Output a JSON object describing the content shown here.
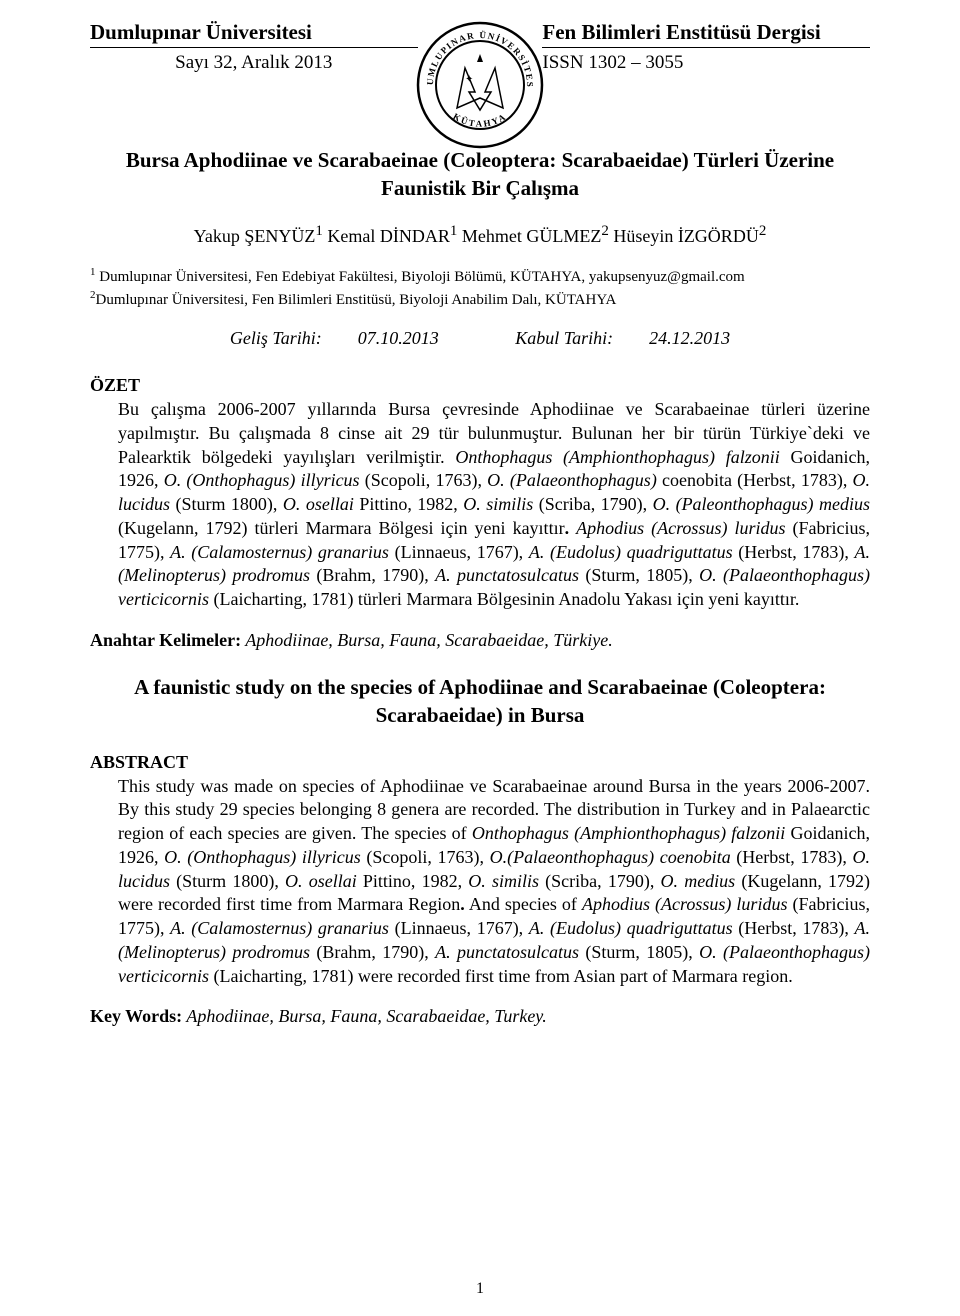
{
  "header": {
    "left_line1": "Dumlupınar Üniversitesi",
    "left_line2": "Sayı 32, Aralık 2013",
    "right_line1": "Fen Bilimleri Enstitüsü Dergisi",
    "right_line2": "ISSN 1302 – 3055",
    "logo": {
      "top_text": "DUMLUPINAR ÜNİVERSİTESİ",
      "bottom_text": "KÜTAHYA",
      "colors": {
        "stroke": "#000000",
        "fill": "#ffffff"
      }
    }
  },
  "title": "Bursa Aphodiinae ve Scarabaeinae (Coleoptera: Scarabaeidae) Türleri Üzerine Faunistik Bir Çalışma",
  "authors_html": "Yakup ŞENYÜZ<sup>1</sup> Kemal DİNDAR<sup>1</sup> Mehmet GÜLMEZ<sup>2</sup> Hüseyin İZGÖRDÜ<sup>2</sup>",
  "affiliations": [
    "<sup>1</sup> Dumlupınar Üniversitesi, Fen Edebiyat Fakültesi, Biyoloji Bölümü, KÜTAHYA, yakupsenyuz@gmail.com",
    "<sup>2</sup>Dumlupınar Üniversitesi, Fen Bilimleri Enstitüsü, Biyoloji Anabilim Dalı, KÜTAHYA"
  ],
  "dates": {
    "received_label": "Geliş Tarihi:",
    "received": "07.10.2013",
    "accepted_label": "Kabul Tarihi:",
    "accepted": "24.12.2013"
  },
  "ozet": {
    "head": "ÖZET",
    "body_html": "Bu çalışma 2006-2007 yıllarında Bursa çevresinde Aphodiinae ve Scarabaeinae türleri üzerine yapılmıştır. Bu çalışmada 8 cinse ait 29 tür bulunmuştur. Bulunan her bir türün Türkiye`deki ve Palearktik bölgedeki yayılışları verilmiştir. <span class='ital'>Onthophagus (Amphionthophagus) falzonii</span> Goidanich, 1926, <span class='ital'>O. (Onthophagus) illyricus</span> (Scopoli, 1763), <span class='ital'>O. (Palaeonthophagus)</span> coenobita (Herbst, 1783), <span class='ital'>O. lucidus</span> (Sturm 1800), <span class='ital'>O. osellai</span> Pittino, 1982, <span class='ital'>O. similis</span> (Scriba, 1790), <span class='ital'>O. (Paleonthophagus) medius</span> (Kugelann, 1792) türleri Marmara Bölgesi için yeni kayıttır<b>.</b> <span class='ital'>Aphodius (Acrossus) luridus</span> (Fabricius, 1775), <span class='ital'>A. (Calamosternus) granarius</span> (Linnaeus, 1767), <span class='ital'>A. (Eudolus) quadriguttatus</span> (Herbst, 1783), <span class='ital'>A. (Melinopterus) prodromus</span> (Brahm, 1790), <span class='ital'>A. punctatosulcatus</span> (Sturm, 1805), <span class='ital'>O. (Palaeonthophagus) verticicornis</span> (Laicharting, 1781) türleri Marmara Bölgesinin Anadolu Yakası için yeni kayıttır."
  },
  "anahtar": {
    "label": "Anahtar Kelimeler:",
    "text": " Aphodiinae, Bursa, Fauna, Scarabaeidae, Türkiye."
  },
  "en_title": "A faunistic study on the species of Aphodiinae and Scarabaeinae (Coleoptera: Scarabaeidae) in Bursa",
  "abstract": {
    "head": "ABSTRACT",
    "body_html": "This study was made on species of Aphodiinae ve Scarabaeinae around Bursa in the years 2006-2007. By this study 29 species belonging 8 genera are recorded. The distribution in Turkey and in Palaearctic region of each species are given. The species of <span class='ital'>Onthophagus (Amphionthophagus) falzonii</span> Goidanich, 1926, <span class='ital'>O. (Onthophagus) illyricus</span> (Scopoli, 1763), <span class='ital'>O.(Palaeonthophagus) coenobita</span> (Herbst, 1783), <span class='ital'>O. lucidus</span> (Sturm 1800), <span class='ital'>O. osellai</span> Pittino, 1982, <span class='ital'>O. similis</span> (Scriba, 1790), <span class='ital'>O. medius</span> (Kugelann, 1792) were recorded first time from Marmara Region<b>.</b> And species of <span class='ital'>Aphodius (Acrossus) luridus</span> (Fabricius, 1775), <span class='ital'>A. (Calamosternus) granarius</span> (Linnaeus, 1767), <span class='ital'>A. (Eudolus) quadriguttatus</span> (Herbst, 1783), <span class='ital'>A. (Melinopterus) prodromus</span> (Brahm, 1790), <span class='ital'>A. punctatosulcatus</span> (Sturm, 1805), <span class='ital'>O. (Palaeonthophagus) verticicornis</span> (Laicharting, 1781) were recorded first time from Asian part of Marmara region."
  },
  "keywords": {
    "label": "Key Words:",
    "text": " Aphodiinae, Bursa, Fauna, Scarabaeidae, Turkey."
  },
  "page_number": "1",
  "typography": {
    "font_family": "Times New Roman",
    "title_fontsize_pt": 16,
    "body_fontsize_pt": 13,
    "header_fontsize_pt": 16,
    "text_color": "#000000",
    "background_color": "#ffffff"
  }
}
